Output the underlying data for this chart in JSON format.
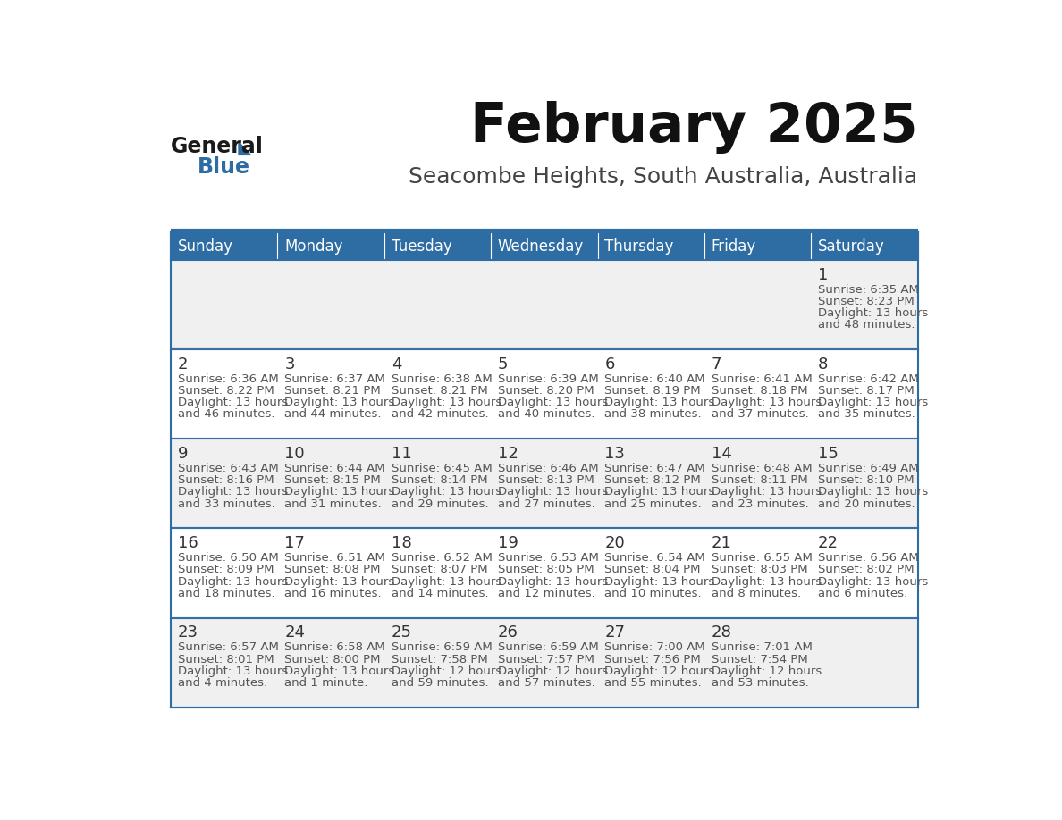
{
  "title": "February 2025",
  "subtitle": "Seacombe Heights, South Australia, Australia",
  "header_bg": "#2E6DA4",
  "header_text_color": "#FFFFFF",
  "day_names": [
    "Sunday",
    "Monday",
    "Tuesday",
    "Wednesday",
    "Thursday",
    "Friday",
    "Saturday"
  ],
  "cell_bg_even": "#F0F0F0",
  "cell_bg_odd": "#FFFFFF",
  "border_color": "#2E6DA4",
  "row_border_color": "#3A6EA8",
  "text_color": "#555555",
  "day_num_color": "#333333",
  "logo_general_color": "#1a1a1a",
  "logo_blue_color": "#2E6DA4",
  "calendar": [
    [
      null,
      null,
      null,
      null,
      null,
      null,
      {
        "day": 1,
        "sunrise": "6:35 AM",
        "sunset": "8:23 PM",
        "daylight": "13 hours",
        "daylight2": "and 48 minutes."
      }
    ],
    [
      {
        "day": 2,
        "sunrise": "6:36 AM",
        "sunset": "8:22 PM",
        "daylight": "13 hours",
        "daylight2": "and 46 minutes."
      },
      {
        "day": 3,
        "sunrise": "6:37 AM",
        "sunset": "8:21 PM",
        "daylight": "13 hours",
        "daylight2": "and 44 minutes."
      },
      {
        "day": 4,
        "sunrise": "6:38 AM",
        "sunset": "8:21 PM",
        "daylight": "13 hours",
        "daylight2": "and 42 minutes."
      },
      {
        "day": 5,
        "sunrise": "6:39 AM",
        "sunset": "8:20 PM",
        "daylight": "13 hours",
        "daylight2": "and 40 minutes."
      },
      {
        "day": 6,
        "sunrise": "6:40 AM",
        "sunset": "8:19 PM",
        "daylight": "13 hours",
        "daylight2": "and 38 minutes."
      },
      {
        "day": 7,
        "sunrise": "6:41 AM",
        "sunset": "8:18 PM",
        "daylight": "13 hours",
        "daylight2": "and 37 minutes."
      },
      {
        "day": 8,
        "sunrise": "6:42 AM",
        "sunset": "8:17 PM",
        "daylight": "13 hours",
        "daylight2": "and 35 minutes."
      }
    ],
    [
      {
        "day": 9,
        "sunrise": "6:43 AM",
        "sunset": "8:16 PM",
        "daylight": "13 hours",
        "daylight2": "and 33 minutes."
      },
      {
        "day": 10,
        "sunrise": "6:44 AM",
        "sunset": "8:15 PM",
        "daylight": "13 hours",
        "daylight2": "and 31 minutes."
      },
      {
        "day": 11,
        "sunrise": "6:45 AM",
        "sunset": "8:14 PM",
        "daylight": "13 hours",
        "daylight2": "and 29 minutes."
      },
      {
        "day": 12,
        "sunrise": "6:46 AM",
        "sunset": "8:13 PM",
        "daylight": "13 hours",
        "daylight2": "and 27 minutes."
      },
      {
        "day": 13,
        "sunrise": "6:47 AM",
        "sunset": "8:12 PM",
        "daylight": "13 hours",
        "daylight2": "and 25 minutes."
      },
      {
        "day": 14,
        "sunrise": "6:48 AM",
        "sunset": "8:11 PM",
        "daylight": "13 hours",
        "daylight2": "and 23 minutes."
      },
      {
        "day": 15,
        "sunrise": "6:49 AM",
        "sunset": "8:10 PM",
        "daylight": "13 hours",
        "daylight2": "and 20 minutes."
      }
    ],
    [
      {
        "day": 16,
        "sunrise": "6:50 AM",
        "sunset": "8:09 PM",
        "daylight": "13 hours",
        "daylight2": "and 18 minutes."
      },
      {
        "day": 17,
        "sunrise": "6:51 AM",
        "sunset": "8:08 PM",
        "daylight": "13 hours",
        "daylight2": "and 16 minutes."
      },
      {
        "day": 18,
        "sunrise": "6:52 AM",
        "sunset": "8:07 PM",
        "daylight": "13 hours",
        "daylight2": "and 14 minutes."
      },
      {
        "day": 19,
        "sunrise": "6:53 AM",
        "sunset": "8:05 PM",
        "daylight": "13 hours",
        "daylight2": "and 12 minutes."
      },
      {
        "day": 20,
        "sunrise": "6:54 AM",
        "sunset": "8:04 PM",
        "daylight": "13 hours",
        "daylight2": "and 10 minutes."
      },
      {
        "day": 21,
        "sunrise": "6:55 AM",
        "sunset": "8:03 PM",
        "daylight": "13 hours",
        "daylight2": "and 8 minutes."
      },
      {
        "day": 22,
        "sunrise": "6:56 AM",
        "sunset": "8:02 PM",
        "daylight": "13 hours",
        "daylight2": "and 6 minutes."
      }
    ],
    [
      {
        "day": 23,
        "sunrise": "6:57 AM",
        "sunset": "8:01 PM",
        "daylight": "13 hours",
        "daylight2": "and 4 minutes."
      },
      {
        "day": 24,
        "sunrise": "6:58 AM",
        "sunset": "8:00 PM",
        "daylight": "13 hours",
        "daylight2": "and 1 minute."
      },
      {
        "day": 25,
        "sunrise": "6:59 AM",
        "sunset": "7:58 PM",
        "daylight": "12 hours",
        "daylight2": "and 59 minutes."
      },
      {
        "day": 26,
        "sunrise": "6:59 AM",
        "sunset": "7:57 PM",
        "daylight": "12 hours",
        "daylight2": "and 57 minutes."
      },
      {
        "day": 27,
        "sunrise": "7:00 AM",
        "sunset": "7:56 PM",
        "daylight": "12 hours",
        "daylight2": "and 55 minutes."
      },
      {
        "day": 28,
        "sunrise": "7:01 AM",
        "sunset": "7:54 PM",
        "daylight": "12 hours",
        "daylight2": "and 53 minutes."
      },
      null
    ]
  ]
}
